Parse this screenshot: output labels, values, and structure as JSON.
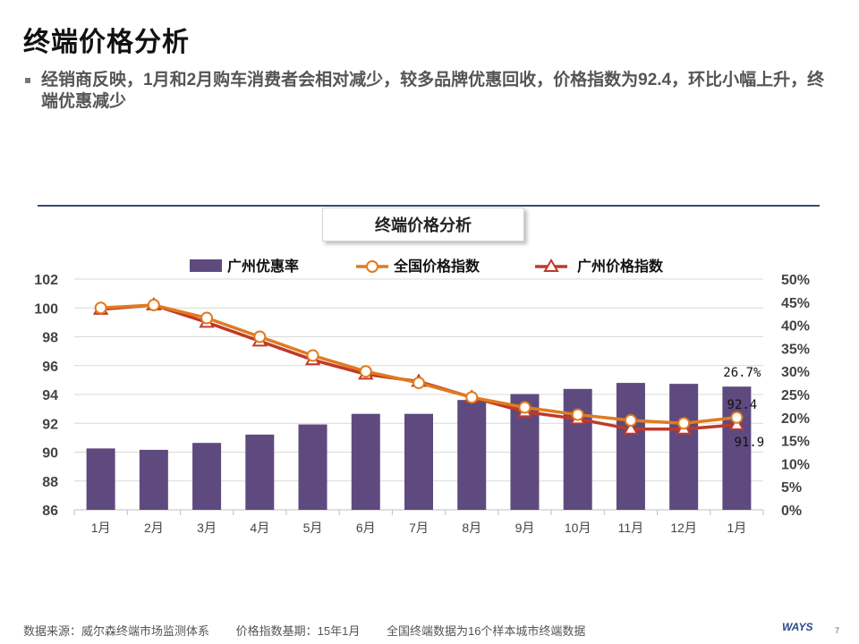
{
  "slide": {
    "title": "终端价格分析",
    "bullet": "经销商反映，1月和2月购车消费者会相对减少，较多品牌优惠回收，价格指数为92.4，环比小幅上升，终端优惠减少"
  },
  "footer": {
    "source": "数据来源：威尔森终端市场监测体系",
    "base": "价格指数基期：15年1月",
    "note": "全国终端数据为16个样本城市终端数据",
    "logo": "WAYS",
    "page": "7"
  },
  "colors": {
    "bar": "#5e4a7e",
    "national": "#e07b1f",
    "guangzhou": "#c0392b",
    "rule": "#3b4a6b"
  },
  "chart_data": {
    "type": "bar",
    "title": "终端价格分析",
    "categories": [
      "1月",
      "2月",
      "3月",
      "4月",
      "5月",
      "6月",
      "7月",
      "8月",
      "9月",
      "10月",
      "11月",
      "12月",
      "1月"
    ],
    "series": [
      {
        "name": "广州优惠率",
        "axis": "right",
        "type": "bar",
        "values": [
          13.3,
          13.0,
          14.5,
          16.3,
          18.5,
          20.8,
          20.8,
          23.8,
          25.1,
          26.2,
          27.5,
          27.3,
          26.7
        ]
      },
      {
        "name": "全国价格指数",
        "axis": "left",
        "type": "line",
        "marker": "circle",
        "values": [
          100.0,
          100.2,
          99.3,
          98.0,
          96.7,
          95.6,
          94.8,
          93.8,
          93.1,
          92.6,
          92.2,
          92.0,
          92.4
        ]
      },
      {
        "name": "广州价格指数",
        "axis": "left",
        "type": "line",
        "marker": "triangle",
        "values": [
          99.9,
          100.2,
          99.0,
          97.7,
          96.4,
          95.4,
          94.9,
          93.8,
          92.8,
          92.3,
          91.6,
          91.6,
          91.9
        ]
      }
    ],
    "ylim_left": [
      86,
      102
    ],
    "yticks_left": [
      "102",
      "100",
      "98",
      "96",
      "94",
      "92",
      "90",
      "88",
      "86"
    ],
    "ylim_right": [
      0,
      50
    ],
    "yticks_right": [
      "50%",
      "45%",
      "40%",
      "35%",
      "30%",
      "25%",
      "20%",
      "15%",
      "10%",
      "5%",
      "0%"
    ],
    "data_labels": [
      "26.7%",
      "92.4",
      "91.9"
    ],
    "grid": true,
    "legend": "top"
  }
}
